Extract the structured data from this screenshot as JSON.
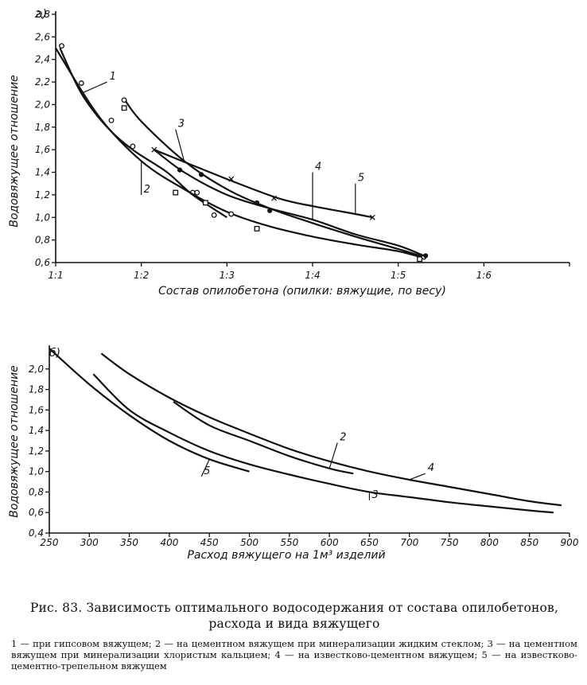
{
  "caption": {
    "title": "Рис. 83. Зависимость оптимального водосодержания от состава опилобетонов, расхода и вида вяжущего",
    "legend": "1 — при гипсовом вяжущем; 2 — на цементном вяжущем при минерализации жидким стеклом; 3 — на цементном вяжущем при минерализации хлористым кальцием; 4 — на известково-цементном вяжущем; 5 — на известково-цементно-трепельном вяжущем"
  },
  "chart_data": [
    {
      "panel_label": "а)",
      "type": "line",
      "xlabel": "Состав опилобетона (опилки: вяжущие, по весу)",
      "ylabel": "Водовяжущее отношение",
      "xlim": [
        1.0,
        1.6
      ],
      "ylim": [
        0.6,
        2.8
      ],
      "x_ticks": [
        {
          "v": 1.0,
          "label": "1:1"
        },
        {
          "v": 1.1,
          "label": "1:2"
        },
        {
          "v": 1.2,
          "label": "1:3"
        },
        {
          "v": 1.3,
          "label": "1:4"
        },
        {
          "v": 1.4,
          "label": "1:5"
        },
        {
          "v": 1.5,
          "label": "1:6"
        }
      ],
      "y_ticks": [
        "0,6",
        "0,8",
        "1,0",
        "1,2",
        "1,4",
        "1,6",
        "1,8",
        "2,0",
        "2,2",
        "2,4",
        "2,6",
        "2,8"
      ],
      "y_tick_values": [
        0.6,
        0.8,
        1.0,
        1.2,
        1.4,
        1.6,
        1.8,
        2.0,
        2.2,
        2.4,
        2.6,
        2.8
      ],
      "series": [
        {
          "name": "1",
          "marker": "circle",
          "x": [
            1.005,
            1.03,
            1.06,
            1.09,
            1.13,
            1.16,
            1.2
          ],
          "y": [
            2.5,
            2.1,
            1.8,
            1.6,
            1.4,
            1.2,
            1.0
          ],
          "points": [
            [
              1.007,
              2.52
            ],
            [
              1.03,
              2.19
            ],
            [
              1.065,
              1.86
            ],
            [
              1.09,
              1.63
            ],
            [
              1.16,
              1.22
            ],
            [
              1.185,
              1.02
            ]
          ],
          "label_at": [
            1.06,
            2.2
          ]
        },
        {
          "name": "2",
          "marker": "square",
          "x": [
            1.0,
            1.05,
            1.1,
            1.15,
            1.2,
            1.25,
            1.3,
            1.35,
            1.4,
            1.43
          ],
          "y": [
            2.5,
            1.9,
            1.5,
            1.25,
            1.05,
            0.92,
            0.83,
            0.76,
            0.7,
            0.64
          ],
          "points": [
            [
              1.08,
              1.97
            ],
            [
              1.14,
              1.22
            ],
            [
              1.175,
              1.13
            ],
            [
              1.235,
              0.9
            ],
            [
              1.425,
              0.63
            ]
          ],
          "label_at": [
            1.1,
            1.2
          ]
        },
        {
          "name": "3",
          "marker": "circle",
          "x": [
            1.08,
            1.1,
            1.15,
            1.2,
            1.25,
            1.3,
            1.35,
            1.4,
            1.43
          ],
          "y": [
            2.05,
            1.85,
            1.5,
            1.25,
            1.08,
            0.95,
            0.83,
            0.72,
            0.65
          ],
          "points": [
            [
              1.08,
              2.04
            ],
            [
              1.165,
              1.22
            ],
            [
              1.205,
              1.03
            ],
            [
              1.43,
              0.65
            ]
          ],
          "label_at": [
            1.14,
            1.78
          ]
        },
        {
          "name": "4",
          "marker": "dot",
          "x": [
            1.115,
            1.15,
            1.2,
            1.25,
            1.3,
            1.35,
            1.4,
            1.43
          ],
          "y": [
            1.6,
            1.4,
            1.2,
            1.08,
            0.98,
            0.85,
            0.75,
            0.66
          ],
          "points": [
            [
              1.145,
              1.42
            ],
            [
              1.17,
              1.38
            ],
            [
              1.235,
              1.13
            ],
            [
              1.25,
              1.06
            ],
            [
              1.432,
              0.66
            ]
          ],
          "label_at": [
            1.3,
            1.4
          ]
        },
        {
          "name": "5",
          "marker": "x",
          "x": [
            1.115,
            1.2,
            1.26,
            1.3,
            1.35,
            1.37
          ],
          "y": [
            1.6,
            1.34,
            1.17,
            1.1,
            1.03,
            1.0
          ],
          "points": [
            [
              1.115,
              1.6
            ],
            [
              1.205,
              1.34
            ],
            [
              1.255,
              1.17
            ],
            [
              1.37,
              1.0
            ]
          ],
          "label_at": [
            1.35,
            1.3
          ]
        }
      ]
    },
    {
      "panel_label": "б)",
      "type": "line",
      "xlabel": "Расход вяжущего на 1м³ изделий",
      "ylabel": "Водовяжущее отношение",
      "xlim": [
        250,
        900
      ],
      "ylim": [
        0.4,
        2.2
      ],
      "x_ticks": [
        {
          "v": 250,
          "label": "250"
        },
        {
          "v": 300,
          "label": "300"
        },
        {
          "v": 350,
          "label": "350"
        },
        {
          "v": 400,
          "label": "400"
        },
        {
          "v": 450,
          "label": "450"
        },
        {
          "v": 500,
          "label": "500"
        },
        {
          "v": 550,
          "label": "550"
        },
        {
          "v": 600,
          "label": "600"
        },
        {
          "v": 650,
          "label": "650"
        },
        {
          "v": 700,
          "label": "700"
        },
        {
          "v": 750,
          "label": "750"
        },
        {
          "v": 800,
          "label": "800"
        },
        {
          "v": 850,
          "label": "850"
        },
        {
          "v": 900,
          "label": "900"
        }
      ],
      "y_ticks": [
        "0,4",
        "0,6",
        "0,8",
        "1,0",
        "1,2",
        "1,4",
        "1,6",
        "1,8",
        "2,0"
      ],
      "y_tick_values": [
        0.4,
        0.6,
        0.8,
        1.0,
        1.2,
        1.4,
        1.6,
        1.8,
        2.0
      ],
      "series": [
        {
          "name": "5",
          "x": [
            250,
            300,
            350,
            400,
            450,
            500
          ],
          "y": [
            2.2,
            1.85,
            1.55,
            1.3,
            1.12,
            1.0
          ],
          "label_at": [
            440,
            0.95
          ]
        },
        {
          "name": "2",
          "x": [
            405,
            450,
            500,
            550,
            600,
            630
          ],
          "y": [
            1.68,
            1.45,
            1.3,
            1.15,
            1.03,
            0.98
          ],
          "label_at": [
            610,
            1.28
          ]
        },
        {
          "name": "3",
          "x": [
            305,
            350,
            400,
            450,
            500,
            550,
            600,
            650,
            700,
            750,
            800,
            850,
            880
          ],
          "y": [
            1.95,
            1.6,
            1.38,
            1.2,
            1.07,
            0.97,
            0.88,
            0.8,
            0.75,
            0.7,
            0.66,
            0.62,
            0.6
          ],
          "label_at": [
            650,
            0.72
          ]
        },
        {
          "name": "4",
          "x": [
            315,
            350,
            400,
            450,
            500,
            550,
            600,
            650,
            700,
            750,
            800,
            850,
            890
          ],
          "y": [
            2.15,
            1.95,
            1.72,
            1.53,
            1.37,
            1.22,
            1.1,
            1.0,
            0.92,
            0.85,
            0.78,
            0.71,
            0.67
          ],
          "label_at": [
            720,
            0.98
          ]
        }
      ]
    }
  ]
}
